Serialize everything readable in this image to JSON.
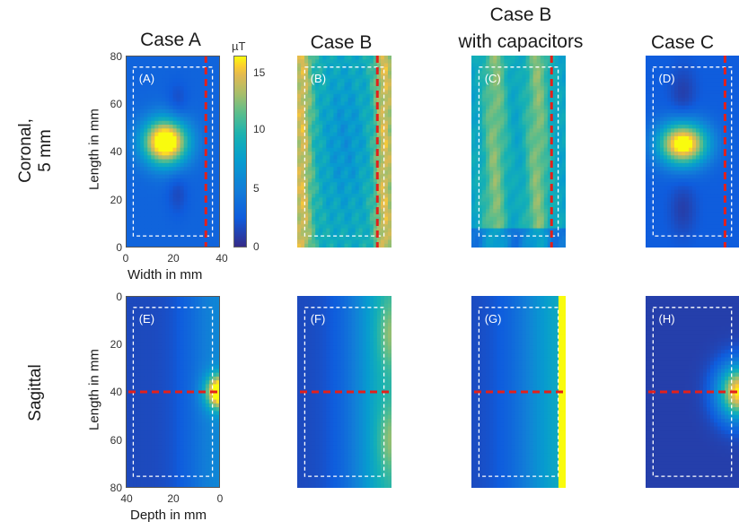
{
  "columns": [
    {
      "label_line1": "Case A",
      "label_line2": ""
    },
    {
      "label_line1": "Case B",
      "label_line2": ""
    },
    {
      "label_line1": "Case B",
      "label_line2": "with capacitors"
    },
    {
      "label_line1": "Case C",
      "label_line2": ""
    }
  ],
  "rows": [
    {
      "label_line1": "Coronal,",
      "label_line2": "5 mm"
    },
    {
      "label_line1": "Sagittal",
      "label_line2": ""
    }
  ],
  "colorbar": {
    "unit": "µT",
    "ticks": [
      "15",
      "10",
      "5",
      "0"
    ],
    "min": 0,
    "max": 16
  },
  "axes": {
    "coronal_ylabel": "Length in mm",
    "coronal_xlabel": "Width in mm",
    "coronal_yticks": [
      "80",
      "60",
      "40",
      "20",
      "0"
    ],
    "coronal_xticks": [
      "0",
      "20",
      "40"
    ],
    "sagittal_ylabel": "Length in mm",
    "sagittal_xlabel": "Depth in mm",
    "sagittal_yticks": [
      "0",
      "20",
      "40",
      "60",
      "80"
    ],
    "sagittal_xticks": [
      "40",
      "20",
      "0"
    ]
  },
  "panels": [
    {
      "id": "A",
      "label": "(A)"
    },
    {
      "id": "B",
      "label": "(B)"
    },
    {
      "id": "C",
      "label": "(C)"
    },
    {
      "id": "D",
      "label": "(D)"
    },
    {
      "id": "E",
      "label": "(E)"
    },
    {
      "id": "F",
      "label": "(F)"
    },
    {
      "id": "G",
      "label": "(G)"
    },
    {
      "id": "H",
      "label": "(H)"
    }
  ],
  "colors": {
    "cut_line": "#e3201b",
    "roi_box": "#ffffff"
  },
  "chart_data": {
    "type": "heatmap",
    "title": "",
    "colormap": "parula",
    "value_unit": "µT",
    "value_range": [
      0,
      16
    ],
    "coronal_extent": {
      "x_range_mm": [
        0,
        40
      ],
      "y_range_mm": [
        0,
        80
      ]
    },
    "sagittal_extent": {
      "x_range_mm": [
        40,
        0
      ],
      "y_range_mm": [
        0,
        80
      ]
    },
    "coronal_cut_line_width_mm": 34,
    "sagittal_cut_line_length_mm": 40,
    "panels": [
      {
        "id": "A",
        "view": "coronal",
        "case": "Case A",
        "pattern": "central hotspot near length 40 mm",
        "peak_uT": 16,
        "background_uT": 3
      },
      {
        "id": "B",
        "view": "coronal",
        "case": "Case B",
        "pattern": "high along both long edges, lower centre",
        "peak_uT": 14,
        "background_uT": 8
      },
      {
        "id": "C",
        "view": "coronal",
        "case": "Case B with capacitors",
        "pattern": "bands along edges, moderate centre",
        "peak_uT": 12,
        "background_uT": 8
      },
      {
        "id": "D",
        "view": "coronal",
        "case": "Case C",
        "pattern": "central hotspot near length 40 mm",
        "peak_uT": 16,
        "background_uT": 2
      },
      {
        "id": "E",
        "view": "sagittal",
        "case": "Case A",
        "pattern": "hotspot at surface near length 40 mm, decaying with depth",
        "peak_uT": 16,
        "background_uT": 1
      },
      {
        "id": "F",
        "view": "sagittal",
        "case": "Case B",
        "pattern": "moderate field along surface, decaying with depth",
        "peak_uT": 12,
        "background_uT": 1
      },
      {
        "id": "G",
        "view": "sagittal",
        "case": "Case B with capacitors",
        "pattern": "strong uniform band at surface",
        "peak_uT": 16,
        "background_uT": 1
      },
      {
        "id": "H",
        "view": "sagittal",
        "case": "Case C",
        "pattern": "hotspot at surface near length 40 mm, decaying with depth",
        "peak_uT": 16,
        "background_uT": 1
      }
    ]
  }
}
